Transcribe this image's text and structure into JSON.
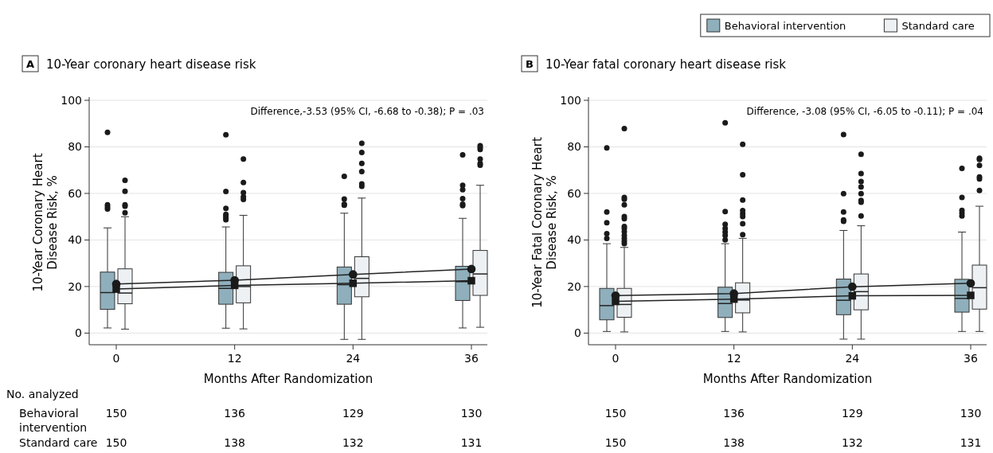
{
  "chart_data": [
    {
      "type": "box",
      "title": "10-Year coronary heart disease risk",
      "xlabel": "Months After Randomization",
      "ylabel": "10-Year Coronary Heart Disease Risk, %",
      "categories": [
        "0",
        "12",
        "24",
        "36"
      ],
      "ylim": [
        -5,
        100
      ],
      "yticks": [
        0,
        20,
        40,
        60,
        80,
        100
      ],
      "grid": "y",
      "legend": false,
      "annotations": [
        "A",
        "Difference,-3.53 (95% CI, -6.68 to -0.38); P = .03",
        "No. analyzed",
        "Behavioral intervention",
        "Standard care",
        "150",
        "136",
        "129",
        "130",
        "150",
        "138",
        "132",
        "131"
      ],
      "series": [
        {
          "color": "#8fafbc",
          "boxes": [
            {
              "low": 2.2,
              "q1": 10.2,
              "median": 17.4,
              "q3": 26.2,
              "high": 45.2,
              "outliers": [
                53.3,
                54.2,
                55.1,
                86.2
              ]
            },
            {
              "low": 2.1,
              "q1": 12.4,
              "median": 19.2,
              "q3": 26.1,
              "high": 45.6,
              "outliers": [
                48.7,
                49.4,
                50.2,
                51,
                53.6,
                60.8,
                85.2
              ]
            },
            {
              "low": -2.7,
              "q1": 12.4,
              "median": 20.8,
              "q3": 28.4,
              "high": 51.5,
              "outliers": [
                54.9,
                55.4,
                57.6,
                67.3
              ]
            },
            {
              "low": 2.2,
              "q1": 14,
              "median": 22.1,
              "q3": 28.7,
              "high": 49.3,
              "outliers": [
                54.8,
                55.4,
                57.8,
                61.6,
                63.5,
                76.6
              ]
            }
          ]
        },
        {
          "color": "#edf1f4",
          "boxes": [
            {
              "low": 1.7,
              "q1": 12.6,
              "median": 17.2,
              "q3": 27.6,
              "high": 50,
              "outliers": [
                51.7,
                54.5,
                55.1,
                60.9,
                65.6
              ]
            },
            {
              "low": 1.8,
              "q1": 13,
              "median": 20,
              "q3": 28.9,
              "high": 50.6,
              "outliers": [
                57.4,
                58.5,
                60.3,
                64.7,
                74.8
              ]
            },
            {
              "low": -2.7,
              "q1": 15.6,
              "median": 23.5,
              "q3": 32.8,
              "high": 58,
              "outliers": [
                63.1,
                64.1,
                69.4,
                72.9,
                77.6,
                81.5
              ]
            },
            {
              "low": 2.5,
              "q1": 16.2,
              "median": 25.4,
              "q3": 35.5,
              "high": 63.5,
              "outliers": [
                72.1,
                72.9,
                74.8,
                78.9,
                79.7,
                80.5
              ]
            }
          ]
        },
        {
          "type": "line",
          "color": "#222222",
          "marker": "square",
          "values": [
            18.9,
            20.5,
            21.4,
            22.5
          ]
        },
        {
          "type": "line",
          "color": "#222222",
          "marker": "circle",
          "values": [
            21.1,
            22.7,
            25.2,
            27.5
          ]
        }
      ]
    },
    {
      "type": "box",
      "title": "10-Year fatal coronary heart disease risk",
      "xlabel": "Months After Randomization",
      "ylabel": "10-Year Fatal Coronary Heart Disease Risk, %",
      "categories": [
        "0",
        "12",
        "24",
        "36"
      ],
      "ylim": [
        -5,
        100
      ],
      "yticks": [
        0,
        20,
        40,
        60,
        80,
        100
      ],
      "grid": "y",
      "legend": "top right",
      "annotations": [
        "B",
        "Difference, -3.08 (95% CI, -6.05 to -0.11); P = .04",
        "150",
        "136",
        "129",
        "130",
        "150",
        "138",
        "132",
        "131"
      ],
      "series": [
        {
          "name": "Behavioral intervention",
          "color": "#8fafbc",
          "boxes": [
            {
              "low": 0.7,
              "q1": 5.7,
              "median": 11.8,
              "q3": 19.2,
              "high": 38.4,
              "outliers": [
                40.7,
                42.7,
                47.4,
                52,
                79.6
              ]
            },
            {
              "low": 0.7,
              "q1": 6.7,
              "median": 12.7,
              "q3": 19.7,
              "high": 38.4,
              "outliers": [
                40.1,
                41.9,
                43.4,
                44.9,
                46.7,
                52.2,
                90.3
              ]
            },
            {
              "low": -2.6,
              "q1": 7.9,
              "median": 14.1,
              "q3": 23.2,
              "high": 44.1,
              "outliers": [
                48,
                48.6,
                52,
                59.9,
                85.3
              ]
            },
            {
              "low": 0.7,
              "q1": 9,
              "median": 14.9,
              "q3": 23.1,
              "high": 43.4,
              "outliers": [
                50.3,
                51.5,
                52.7,
                58.3,
                70.8
              ]
            }
          ]
        },
        {
          "name": "Standard care",
          "color": "#edf1f4",
          "boxes": [
            {
              "low": 0.5,
              "q1": 6.8,
              "median": 12.3,
              "q3": 19.2,
              "high": 36.8,
              "outliers": [
                38.4,
                39.5,
                40.7,
                41.9,
                43.6,
                44.9,
                45.8,
                49.1,
                50.1,
                55.1,
                57.5,
                58.3,
                87.9
              ]
            },
            {
              "low": 0.5,
              "q1": 8.7,
              "median": 14.2,
              "q3": 21.6,
              "high": 40.7,
              "outliers": [
                42.3,
                47,
                50.1,
                51.3,
                52.6,
                57.2,
                68,
                81.1
              ]
            },
            {
              "low": -2.6,
              "q1": 10,
              "median": 17.8,
              "q3": 25.4,
              "high": 46.1,
              "outliers": [
                50.3,
                56.2,
                57,
                59.9,
                62.8,
                65.1,
                68.5,
                76.8
              ]
            },
            {
              "low": 0.7,
              "q1": 10.3,
              "median": 19.5,
              "q3": 29.2,
              "high": 54.5,
              "outliers": [
                61.3,
                66.2,
                67.1,
                72,
                74.6,
                75.1
              ]
            }
          ]
        },
        {
          "type": "line",
          "color": "#222222",
          "marker": "square",
          "values": [
            13.6,
            14.6,
            16,
            16.2
          ]
        },
        {
          "type": "line",
          "color": "#222222",
          "marker": "circle",
          "values": [
            16.1,
            17,
            19.9,
            21.4
          ]
        }
      ]
    }
  ]
}
